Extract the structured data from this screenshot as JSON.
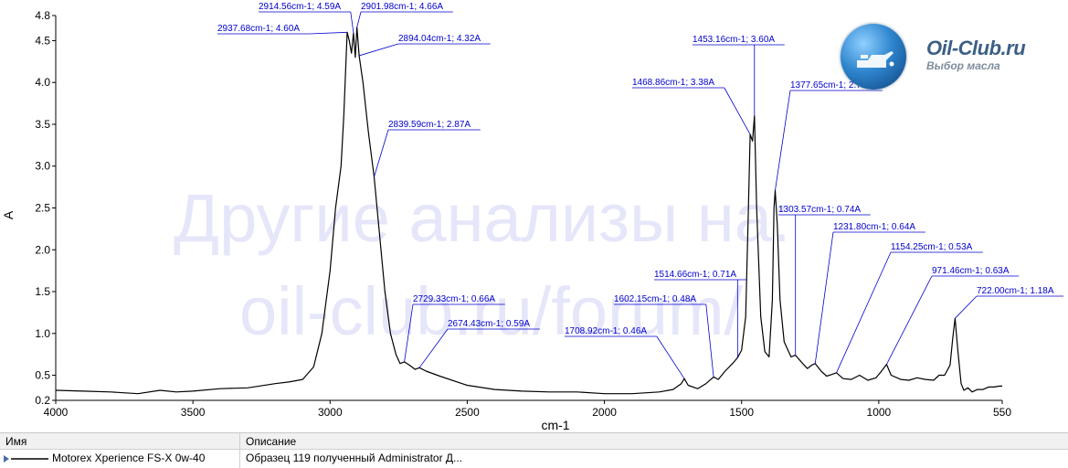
{
  "watermark": {
    "line1": "Другие анализы на:",
    "line2": "oil-club.ru/forum/"
  },
  "logo": {
    "title": "Oil-Club.ru",
    "subtitle": "Выбор масла"
  },
  "legend_table": {
    "col_name": "Имя",
    "col_description": "Описание",
    "row_name": "Motorex Xperience FS-X 0w-40",
    "row_description": "Образец 119 полученный Administrator Д..."
  },
  "colors": {
    "line": "#000000",
    "annotation": "#0000cc",
    "axis": "#000000",
    "watermark": "#e6e6fa"
  },
  "chart_data": {
    "type": "line",
    "xlabel": "cm-1",
    "ylabel": "A",
    "xlim": [
      4000,
      550
    ],
    "ylim": [
      0.2,
      4.8
    ],
    "x_ticks": [
      4000,
      3500,
      3000,
      2500,
      2000,
      1500,
      1000,
      550
    ],
    "y_ticks": [
      0.2,
      0.5,
      1.0,
      1.5,
      2.0,
      2.5,
      3.0,
      3.5,
      4.0,
      4.5,
      4.8
    ],
    "y_tick_labels": [
      "0.2",
      "0.5",
      "1.0",
      "1.5",
      "2.0",
      "2.5",
      "3.0",
      "3.5",
      "4.0",
      "4.5",
      "4.8"
    ],
    "grid": false,
    "series": [
      {
        "name": "Motorex Xperience FS-X 0w-40",
        "points": [
          [
            4000,
            0.32
          ],
          [
            3900,
            0.31
          ],
          [
            3800,
            0.3
          ],
          [
            3700,
            0.28
          ],
          [
            3620,
            0.32
          ],
          [
            3560,
            0.3
          ],
          [
            3500,
            0.31
          ],
          [
            3400,
            0.34
          ],
          [
            3300,
            0.35
          ],
          [
            3200,
            0.4
          ],
          [
            3150,
            0.42
          ],
          [
            3100,
            0.45
          ],
          [
            3060,
            0.6
          ],
          [
            3030,
            1.0
          ],
          [
            3000,
            1.75
          ],
          [
            2980,
            2.5
          ],
          [
            2960,
            3.0
          ],
          [
            2950,
            3.6
          ],
          [
            2937.68,
            4.6
          ],
          [
            2930,
            4.5
          ],
          [
            2922,
            4.35
          ],
          [
            2914.56,
            4.59
          ],
          [
            2908,
            4.3
          ],
          [
            2901.98,
            4.66
          ],
          [
            2894.04,
            4.32
          ],
          [
            2880,
            4.0
          ],
          [
            2860,
            3.4
          ],
          [
            2839.59,
            2.87
          ],
          [
            2820,
            2.2
          ],
          [
            2800,
            1.5
          ],
          [
            2780,
            1.0
          ],
          [
            2760,
            0.75
          ],
          [
            2745,
            0.64
          ],
          [
            2729.33,
            0.66
          ],
          [
            2710,
            0.62
          ],
          [
            2690,
            0.57
          ],
          [
            2674.43,
            0.59
          ],
          [
            2650,
            0.55
          ],
          [
            2600,
            0.49
          ],
          [
            2500,
            0.38
          ],
          [
            2400,
            0.33
          ],
          [
            2300,
            0.31
          ],
          [
            2200,
            0.3
          ],
          [
            2100,
            0.3
          ],
          [
            2000,
            0.28
          ],
          [
            1900,
            0.28
          ],
          [
            1800,
            0.3
          ],
          [
            1750,
            0.33
          ],
          [
            1720,
            0.4
          ],
          [
            1708.92,
            0.46
          ],
          [
            1695,
            0.38
          ],
          [
            1660,
            0.34
          ],
          [
            1630,
            0.4
          ],
          [
            1602.15,
            0.48
          ],
          [
            1585,
            0.45
          ],
          [
            1560,
            0.55
          ],
          [
            1530,
            0.65
          ],
          [
            1514.66,
            0.71
          ],
          [
            1500,
            0.8
          ],
          [
            1485,
            1.2
          ],
          [
            1475,
            2.5
          ],
          [
            1468.86,
            3.38
          ],
          [
            1460,
            3.3
          ],
          [
            1453.16,
            3.6
          ],
          [
            1445,
            2.5
          ],
          [
            1430,
            1.2
          ],
          [
            1415,
            0.78
          ],
          [
            1400,
            0.72
          ],
          [
            1388,
            1.4
          ],
          [
            1382,
            2.5
          ],
          [
            1377.65,
            2.71
          ],
          [
            1370,
            2.3
          ],
          [
            1360,
            1.4
          ],
          [
            1345,
            0.9
          ],
          [
            1320,
            0.72
          ],
          [
            1303.57,
            0.74
          ],
          [
            1280,
            0.65
          ],
          [
            1260,
            0.58
          ],
          [
            1245,
            0.62
          ],
          [
            1231.8,
            0.64
          ],
          [
            1210,
            0.55
          ],
          [
            1190,
            0.49
          ],
          [
            1170,
            0.51
          ],
          [
            1154.25,
            0.53
          ],
          [
            1130,
            0.46
          ],
          [
            1100,
            0.45
          ],
          [
            1070,
            0.5
          ],
          [
            1040,
            0.44
          ],
          [
            1010,
            0.47
          ],
          [
            990,
            0.55
          ],
          [
            971.46,
            0.63
          ],
          [
            955,
            0.5
          ],
          [
            920,
            0.45
          ],
          [
            890,
            0.44
          ],
          [
            860,
            0.47
          ],
          [
            830,
            0.45
          ],
          [
            800,
            0.44
          ],
          [
            780,
            0.5
          ],
          [
            760,
            0.5
          ],
          [
            740,
            0.62
          ],
          [
            730,
            0.95
          ],
          [
            722.0,
            1.18
          ],
          [
            712,
            0.8
          ],
          [
            700,
            0.4
          ],
          [
            690,
            0.32
          ],
          [
            675,
            0.35
          ],
          [
            660,
            0.3
          ],
          [
            640,
            0.33
          ],
          [
            620,
            0.33
          ],
          [
            600,
            0.36
          ],
          [
            580,
            0.36
          ],
          [
            560,
            0.37
          ],
          [
            550,
            0.37
          ]
        ]
      }
    ],
    "annotations": [
      {
        "text": "2937.68cm-1; 4.60A",
        "x": 2937.68,
        "y": 4.6
      },
      {
        "text": "2914.56cm-1; 4.59A",
        "x": 2914.56,
        "y": 4.59
      },
      {
        "text": "2901.98cm-1; 4.66A",
        "x": 2901.98,
        "y": 4.66
      },
      {
        "text": "2894.04cm-1; 4.32A",
        "x": 2894.04,
        "y": 4.32
      },
      {
        "text": "2839.59cm-1; 2.87A",
        "x": 2839.59,
        "y": 2.87
      },
      {
        "text": "2729.33cm-1; 0.66A",
        "x": 2729.33,
        "y": 0.66
      },
      {
        "text": "2674.43cm-1; 0.59A",
        "x": 2674.43,
        "y": 0.59
      },
      {
        "text": "1708.92cm-1; 0.46A",
        "x": 1708.92,
        "y": 0.46
      },
      {
        "text": "1602.15cm-1; 0.48A",
        "x": 1602.15,
        "y": 0.48
      },
      {
        "text": "1514.66cm-1; 0.71A",
        "x": 1514.66,
        "y": 0.71
      },
      {
        "text": "1468.86cm-1; 3.38A",
        "x": 1468.86,
        "y": 3.38
      },
      {
        "text": "1453.16cm-1; 3.60A",
        "x": 1453.16,
        "y": 3.6
      },
      {
        "text": "1377.65cm-1; 2.71A",
        "x": 1377.65,
        "y": 2.71
      },
      {
        "text": "1303.57cm-1; 0.74A",
        "x": 1303.57,
        "y": 0.74
      },
      {
        "text": "1231.80cm-1; 0.64A",
        "x": 1231.8,
        "y": 0.64
      },
      {
        "text": "1154.25cm-1; 0.53A",
        "x": 1154.25,
        "y": 0.53
      },
      {
        "text": "971.46cm-1; 0.63A",
        "x": 971.46,
        "y": 0.63
      },
      {
        "text": "722.00cm-1; 1.18A",
        "x": 722.0,
        "y": 1.18
      }
    ]
  }
}
